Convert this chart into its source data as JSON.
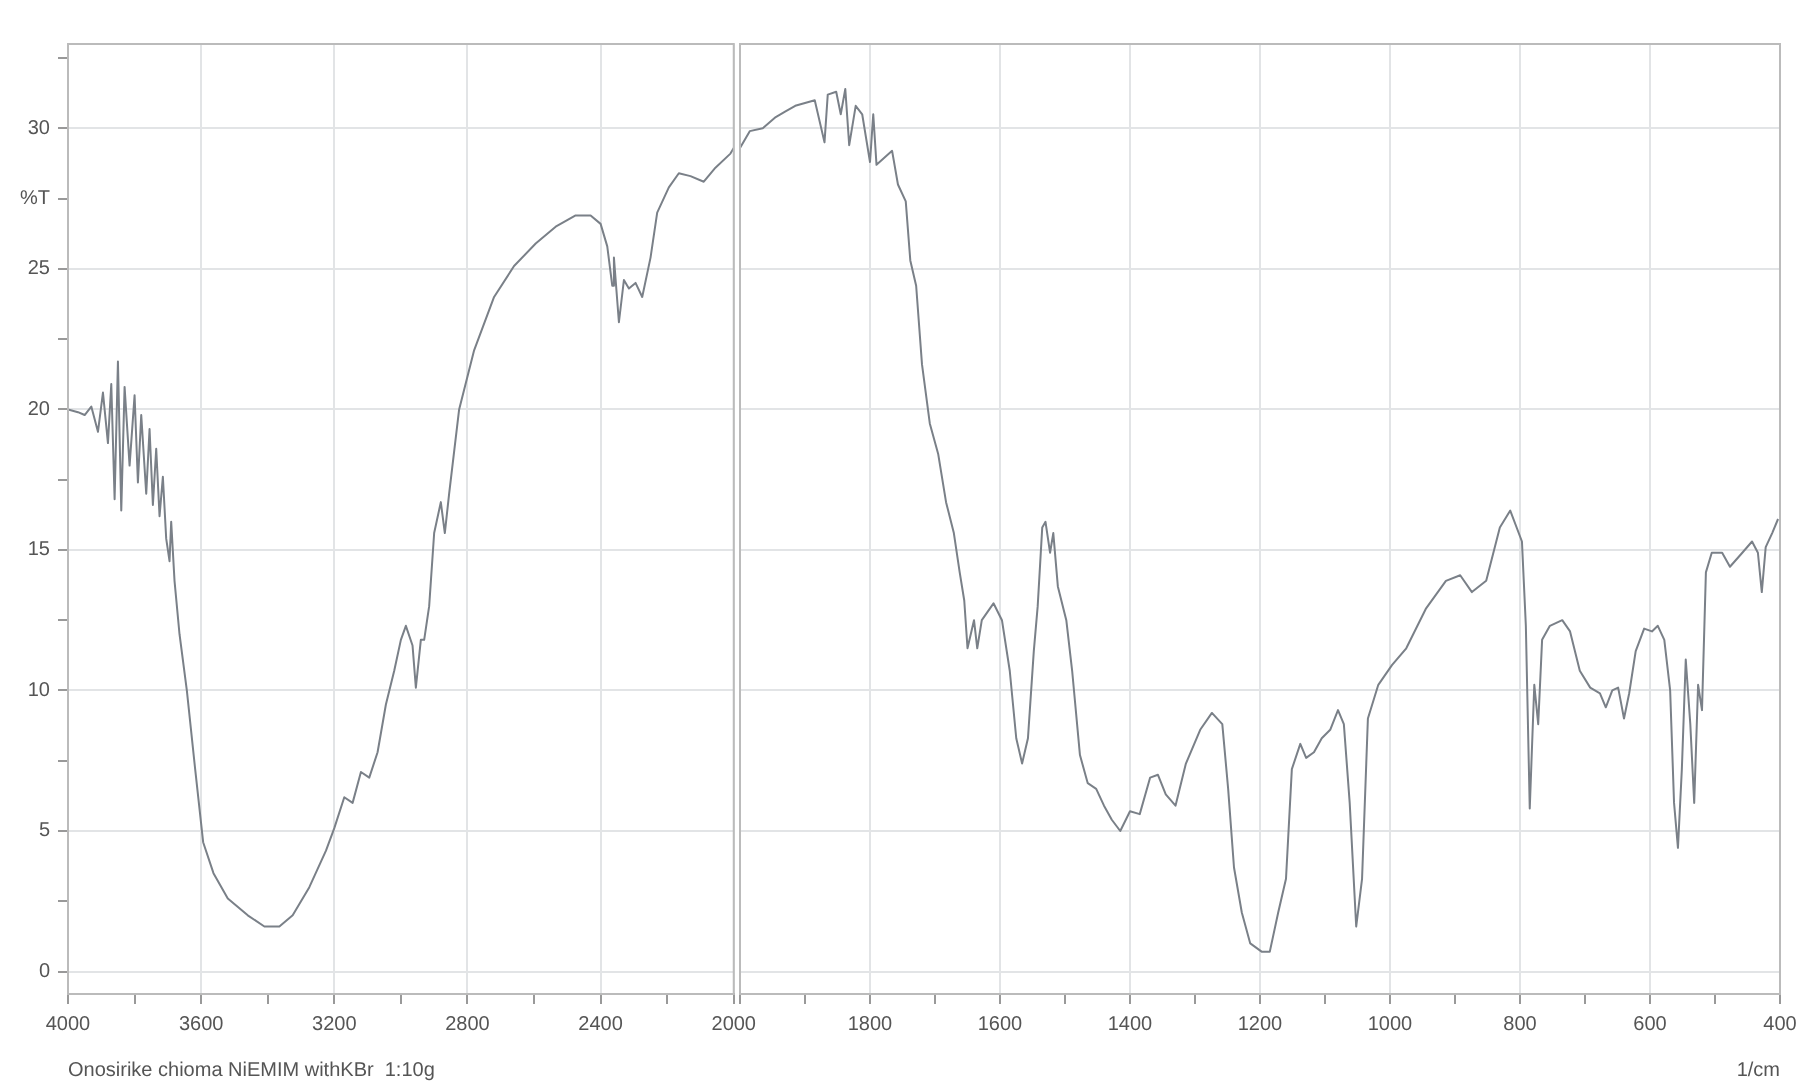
{
  "chart_data": [
    {
      "type": "line",
      "annotations": [
        "Onosirike chioma NiEMIM withKBr  1:10g"
      ],
      "x": [
        4000,
        3970,
        3950,
        3930,
        3910,
        3895,
        3880,
        3870,
        3860,
        3850,
        3840,
        3830,
        3815,
        3800,
        3790,
        3780,
        3765,
        3755,
        3745,
        3735,
        3725,
        3715,
        3705,
        3695,
        3690,
        3680,
        3665,
        3643,
        3618,
        3594,
        3563,
        3520,
        3460,
        3410,
        3365,
        3325,
        3275,
        3225,
        3200,
        3170,
        3145,
        3120,
        3095,
        3070,
        3045,
        3020,
        3000,
        2985,
        2965,
        2955,
        2940,
        2930,
        2915,
        2900,
        2880,
        2868,
        2855,
        2825,
        2780,
        2720,
        2660,
        2595,
        2535,
        2475,
        2430,
        2400,
        2380,
        2365,
        2360,
        2345,
        2330,
        2315,
        2295,
        2275,
        2250,
        2230,
        2195,
        2165,
        2130,
        2090,
        2055,
        2010,
        2000
      ],
      "series": [
        {
          "color": "#7a8088",
          "values": [
            20.0,
            19.9,
            19.8,
            20.1,
            19.2,
            20.6,
            18.8,
            20.9,
            16.8,
            21.7,
            16.4,
            20.8,
            18.0,
            20.5,
            17.4,
            19.8,
            17.0,
            19.3,
            16.6,
            18.6,
            16.2,
            17.6,
            15.4,
            14.6,
            16.0,
            13.9,
            12.0,
            10.0,
            7.2,
            4.6,
            3.5,
            2.6,
            2.0,
            1.6,
            1.6,
            2.0,
            3.0,
            4.3,
            5.1,
            6.2,
            6.0,
            7.1,
            6.9,
            7.8,
            9.5,
            10.7,
            11.8,
            12.3,
            11.6,
            10.1,
            11.8,
            11.8,
            13.0,
            15.6,
            16.7,
            15.6,
            17.0,
            20.0,
            22.1,
            24.0,
            25.1,
            25.9,
            26.5,
            26.9,
            26.9,
            26.6,
            25.8,
            24.4,
            25.4,
            23.1,
            24.6,
            24.3,
            24.5,
            24.0,
            25.4,
            27.0,
            27.9,
            28.4,
            28.3,
            28.1,
            28.6,
            29.1,
            29.3
          ]
        }
      ],
      "xlim": [
        4000,
        2000
      ],
      "xticks": [
        4000,
        {
          "value": 3800,
          "label": null
        },
        3600,
        {
          "value": 3400,
          "label": null
        },
        3200,
        {
          "value": 3000,
          "label": null
        },
        2800,
        {
          "value": 2600,
          "label": null
        },
        2400,
        {
          "value": 2200,
          "label": null
        },
        2000
      ],
      "ylim": [
        -0.8,
        33
      ],
      "yticks": [
        0,
        {
          "value": 2.5,
          "label": null
        },
        5,
        {
          "value": 7.5,
          "label": null
        },
        10,
        {
          "value": 12.5,
          "label": null
        },
        15,
        {
          "value": 17.5,
          "label": null
        },
        20,
        {
          "value": 22.5,
          "label": null
        },
        25,
        {
          "value": 27.5,
          "label": "%T"
        },
        30,
        {
          "value": 32.5,
          "label": null
        }
      ],
      "grid": true,
      "legend": false,
      "marker": "none",
      "line_style": "solid"
    },
    {
      "type": "line",
      "xlabel": "1/cm",
      "x": [
        2000,
        1985,
        1965,
        1945,
        1930,
        1915,
        1900,
        1885,
        1870,
        1865,
        1852,
        1845,
        1838,
        1832,
        1822,
        1812,
        1800,
        1795,
        1790,
        1766,
        1757,
        1745,
        1738,
        1729,
        1720,
        1708,
        1695,
        1683,
        1671,
        1662,
        1655,
        1650,
        1640,
        1635,
        1628,
        1610,
        1597,
        1585,
        1575,
        1566,
        1557,
        1548,
        1542,
        1535,
        1530,
        1523,
        1518,
        1511,
        1498,
        1489,
        1477,
        1465,
        1452,
        1440,
        1428,
        1415,
        1400,
        1385,
        1369,
        1357,
        1345,
        1330,
        1314,
        1292,
        1274,
        1258,
        1249,
        1240,
        1228,
        1215,
        1197,
        1185,
        1172,
        1160,
        1151,
        1138,
        1129,
        1117,
        1105,
        1092,
        1080,
        1071,
        1062,
        1052,
        1043,
        1034,
        1018,
        997,
        975,
        945,
        914,
        892,
        874,
        852,
        831,
        815,
        797,
        791,
        785,
        778,
        772,
        766,
        754,
        735,
        723,
        708,
        692,
        677,
        668,
        658,
        649,
        640,
        632,
        622,
        609,
        597,
        588,
        578,
        569,
        563,
        557,
        551,
        545,
        538,
        532,
        526,
        520,
        514,
        505,
        489,
        477,
        458,
        443,
        434,
        428,
        422,
        412,
        403
      ],
      "series": [
        {
          "color": "#7a8088",
          "values": [
            29.3,
            29.9,
            30.0,
            30.4,
            30.6,
            30.8,
            30.9,
            31.0,
            29.5,
            31.2,
            31.3,
            30.5,
            31.4,
            29.4,
            30.8,
            30.5,
            28.8,
            30.5,
            28.7,
            29.2,
            28.0,
            27.4,
            25.3,
            24.4,
            21.6,
            19.5,
            18.4,
            16.7,
            15.6,
            14.2,
            13.2,
            11.5,
            12.5,
            11.5,
            12.5,
            13.1,
            12.5,
            10.7,
            8.3,
            7.4,
            8.3,
            11.4,
            13.0,
            15.8,
            16.0,
            14.9,
            15.6,
            13.7,
            12.5,
            10.7,
            7.7,
            6.7,
            6.5,
            5.9,
            5.4,
            5.0,
            5.7,
            5.6,
            6.9,
            7.0,
            6.3,
            5.9,
            7.4,
            8.6,
            9.2,
            8.8,
            6.5,
            3.7,
            2.1,
            1.0,
            0.7,
            0.7,
            2.1,
            3.3,
            7.2,
            8.1,
            7.6,
            7.8,
            8.3,
            8.6,
            9.3,
            8.8,
            6.0,
            1.6,
            3.3,
            9.0,
            10.2,
            10.9,
            11.5,
            12.9,
            13.9,
            14.1,
            13.5,
            13.9,
            15.8,
            16.4,
            15.3,
            12.3,
            5.8,
            10.2,
            8.8,
            11.8,
            12.3,
            12.5,
            12.1,
            10.7,
            10.1,
            9.9,
            9.4,
            10.0,
            10.1,
            9.0,
            9.9,
            11.4,
            12.2,
            12.1,
            12.3,
            11.8,
            10.0,
            6.0,
            4.4,
            7.2,
            11.1,
            8.8,
            6.0,
            10.2,
            9.3,
            14.2,
            14.9,
            14.9,
            14.4,
            14.9,
            15.3,
            14.9,
            13.5,
            15.1,
            15.6,
            16.1
          ]
        }
      ],
      "xlim": [
        2000,
        400
      ],
      "xticks": [
        {
          "value": 2000,
          "label": null
        },
        {
          "value": 1900,
          "label": null
        },
        1800,
        {
          "value": 1700,
          "label": null
        },
        1600,
        {
          "value": 1500,
          "label": null
        },
        1400,
        {
          "value": 1300,
          "label": null
        },
        1200,
        {
          "value": 1100,
          "label": null
        },
        1000,
        {
          "value": 900,
          "label": null
        },
        800,
        {
          "value": 700,
          "label": null
        },
        600,
        {
          "value": 500,
          "label": null
        },
        400
      ],
      "ylim": [
        -0.8,
        33
      ],
      "yticks": [
        0,
        5,
        10,
        15,
        20,
        25,
        30
      ],
      "tick_labels": "x",
      "grid": true,
      "legend": false,
      "marker": "none",
      "line_style": "solid"
    }
  ]
}
